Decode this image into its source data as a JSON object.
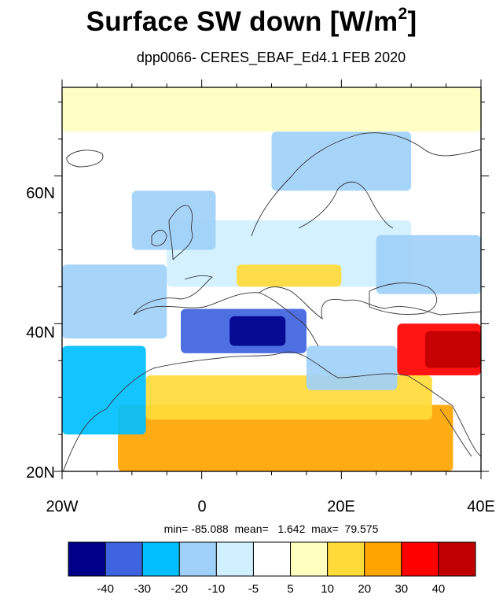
{
  "title": "Surface SW down [W/m",
  "title_sup": "2",
  "title_close": "]",
  "subtitle": "dpp0066- CERES_EBAF_Ed4.1  FEB 2020",
  "stats": {
    "text": "min= -85.088  mean=   1.642  max=  79.575",
    "min": -85.088,
    "mean": 1.642,
    "max": 79.575
  },
  "map": {
    "projection": "cylindrical-equidistant",
    "lon_range": [
      -20,
      40
    ],
    "lat_range": [
      20,
      72
    ],
    "x_tick_labels": [
      "20W",
      "0",
      "20E",
      "40E"
    ],
    "y_tick_labels": [
      "20N",
      "40N",
      "60N"
    ]
  },
  "colorbar": {
    "labels": [
      "-40",
      "-30",
      "-20",
      "-10",
      "-5",
      "5",
      "10",
      "20",
      "30",
      "40"
    ],
    "colors": [
      "#00008b",
      "#3e63e0",
      "#00bfff",
      "#9fd0f9",
      "#d0f0ff",
      "#ffffff",
      "#ffffc0",
      "#ffdb3a",
      "#ffa500",
      "#ff0000",
      "#c00000"
    ]
  },
  "field_regions": [
    {
      "name": "north-africa-south",
      "lon": [
        -12,
        36
      ],
      "lat": [
        20,
        29
      ],
      "color": "#ffa500"
    },
    {
      "name": "north-africa-mid",
      "lon": [
        -8,
        33
      ],
      "lat": [
        27,
        33
      ],
      "color": "#ffdb3a"
    },
    {
      "name": "atlantic-morocco",
      "lon": [
        -20,
        -8
      ],
      "lat": [
        25,
        37
      ],
      "color": "#00bfff"
    },
    {
      "name": "west-med",
      "lon": [
        -3,
        15
      ],
      "lat": [
        36,
        42
      ],
      "color": "#3e63e0"
    },
    {
      "name": "west-med-core",
      "lon": [
        4,
        12
      ],
      "lat": [
        37,
        41
      ],
      "color": "#00008b"
    },
    {
      "name": "east-med",
      "lon": [
        15,
        28
      ],
      "lat": [
        31,
        37
      ],
      "color": "#9fd0f9"
    },
    {
      "name": "middle-east",
      "lon": [
        28,
        40
      ],
      "lat": [
        33,
        40
      ],
      "color": "#ff0000"
    },
    {
      "name": "middle-east-core",
      "lon": [
        32,
        40
      ],
      "lat": [
        34,
        39
      ],
      "color": "#c00000"
    },
    {
      "name": "atlantic-west",
      "lon": [
        -20,
        -5
      ],
      "lat": [
        38,
        48
      ],
      "color": "#9fd0f9"
    },
    {
      "name": "central-europe",
      "lon": [
        -5,
        30
      ],
      "lat": [
        45,
        54
      ],
      "color": "#d0f0ff"
    },
    {
      "name": "alps",
      "lon": [
        5,
        20
      ],
      "lat": [
        45,
        48
      ],
      "color": "#ffdb3a"
    },
    {
      "name": "british-isles",
      "lon": [
        -10,
        2
      ],
      "lat": [
        50,
        58
      ],
      "color": "#9fd0f9"
    },
    {
      "name": "scandinavia",
      "lon": [
        10,
        30
      ],
      "lat": [
        58,
        66
      ],
      "color": "#9fd0f9"
    },
    {
      "name": "arctic",
      "lon": [
        -20,
        40
      ],
      "lat": [
        66,
        72
      ],
      "color": "#ffffc0"
    },
    {
      "name": "east-europe",
      "lon": [
        25,
        40
      ],
      "lat": [
        44,
        52
      ],
      "color": "#9fd0f9"
    }
  ]
}
